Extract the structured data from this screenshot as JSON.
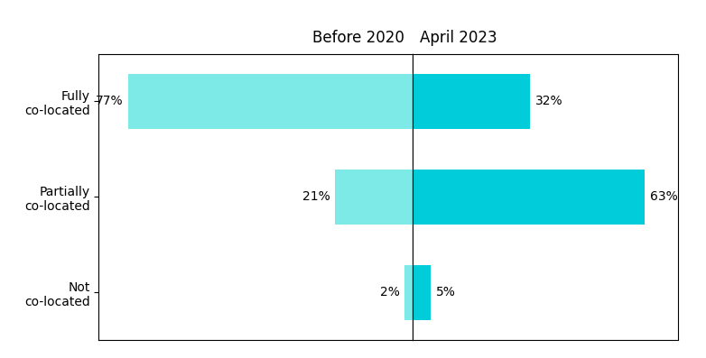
{
  "chart_data": [
    {
      "type": "bar",
      "orientation": "horizontal",
      "title": "Before 2020",
      "categories": [
        "Fully\nco-located",
        "Partially\nco-located",
        "Not\nco-located"
      ],
      "values": [
        77,
        21,
        2
      ],
      "value_labels": [
        "77%",
        "21%",
        "2%"
      ],
      "color": "#7EEAE8",
      "xlim": [
        85,
        0
      ],
      "data_labels": true,
      "tick_labels": "y"
    },
    {
      "type": "bar",
      "orientation": "horizontal",
      "title": "April 2023",
      "categories": [
        "Fully\nco-located",
        "Partially\nco-located",
        "Not\nco-located"
      ],
      "values": [
        32,
        63,
        5
      ],
      "value_labels": [
        "32%",
        "63%",
        "5%"
      ],
      "color": "#00CDD9",
      "xlim": [
        0,
        72
      ],
      "data_labels": true,
      "tick_labels": false
    }
  ]
}
